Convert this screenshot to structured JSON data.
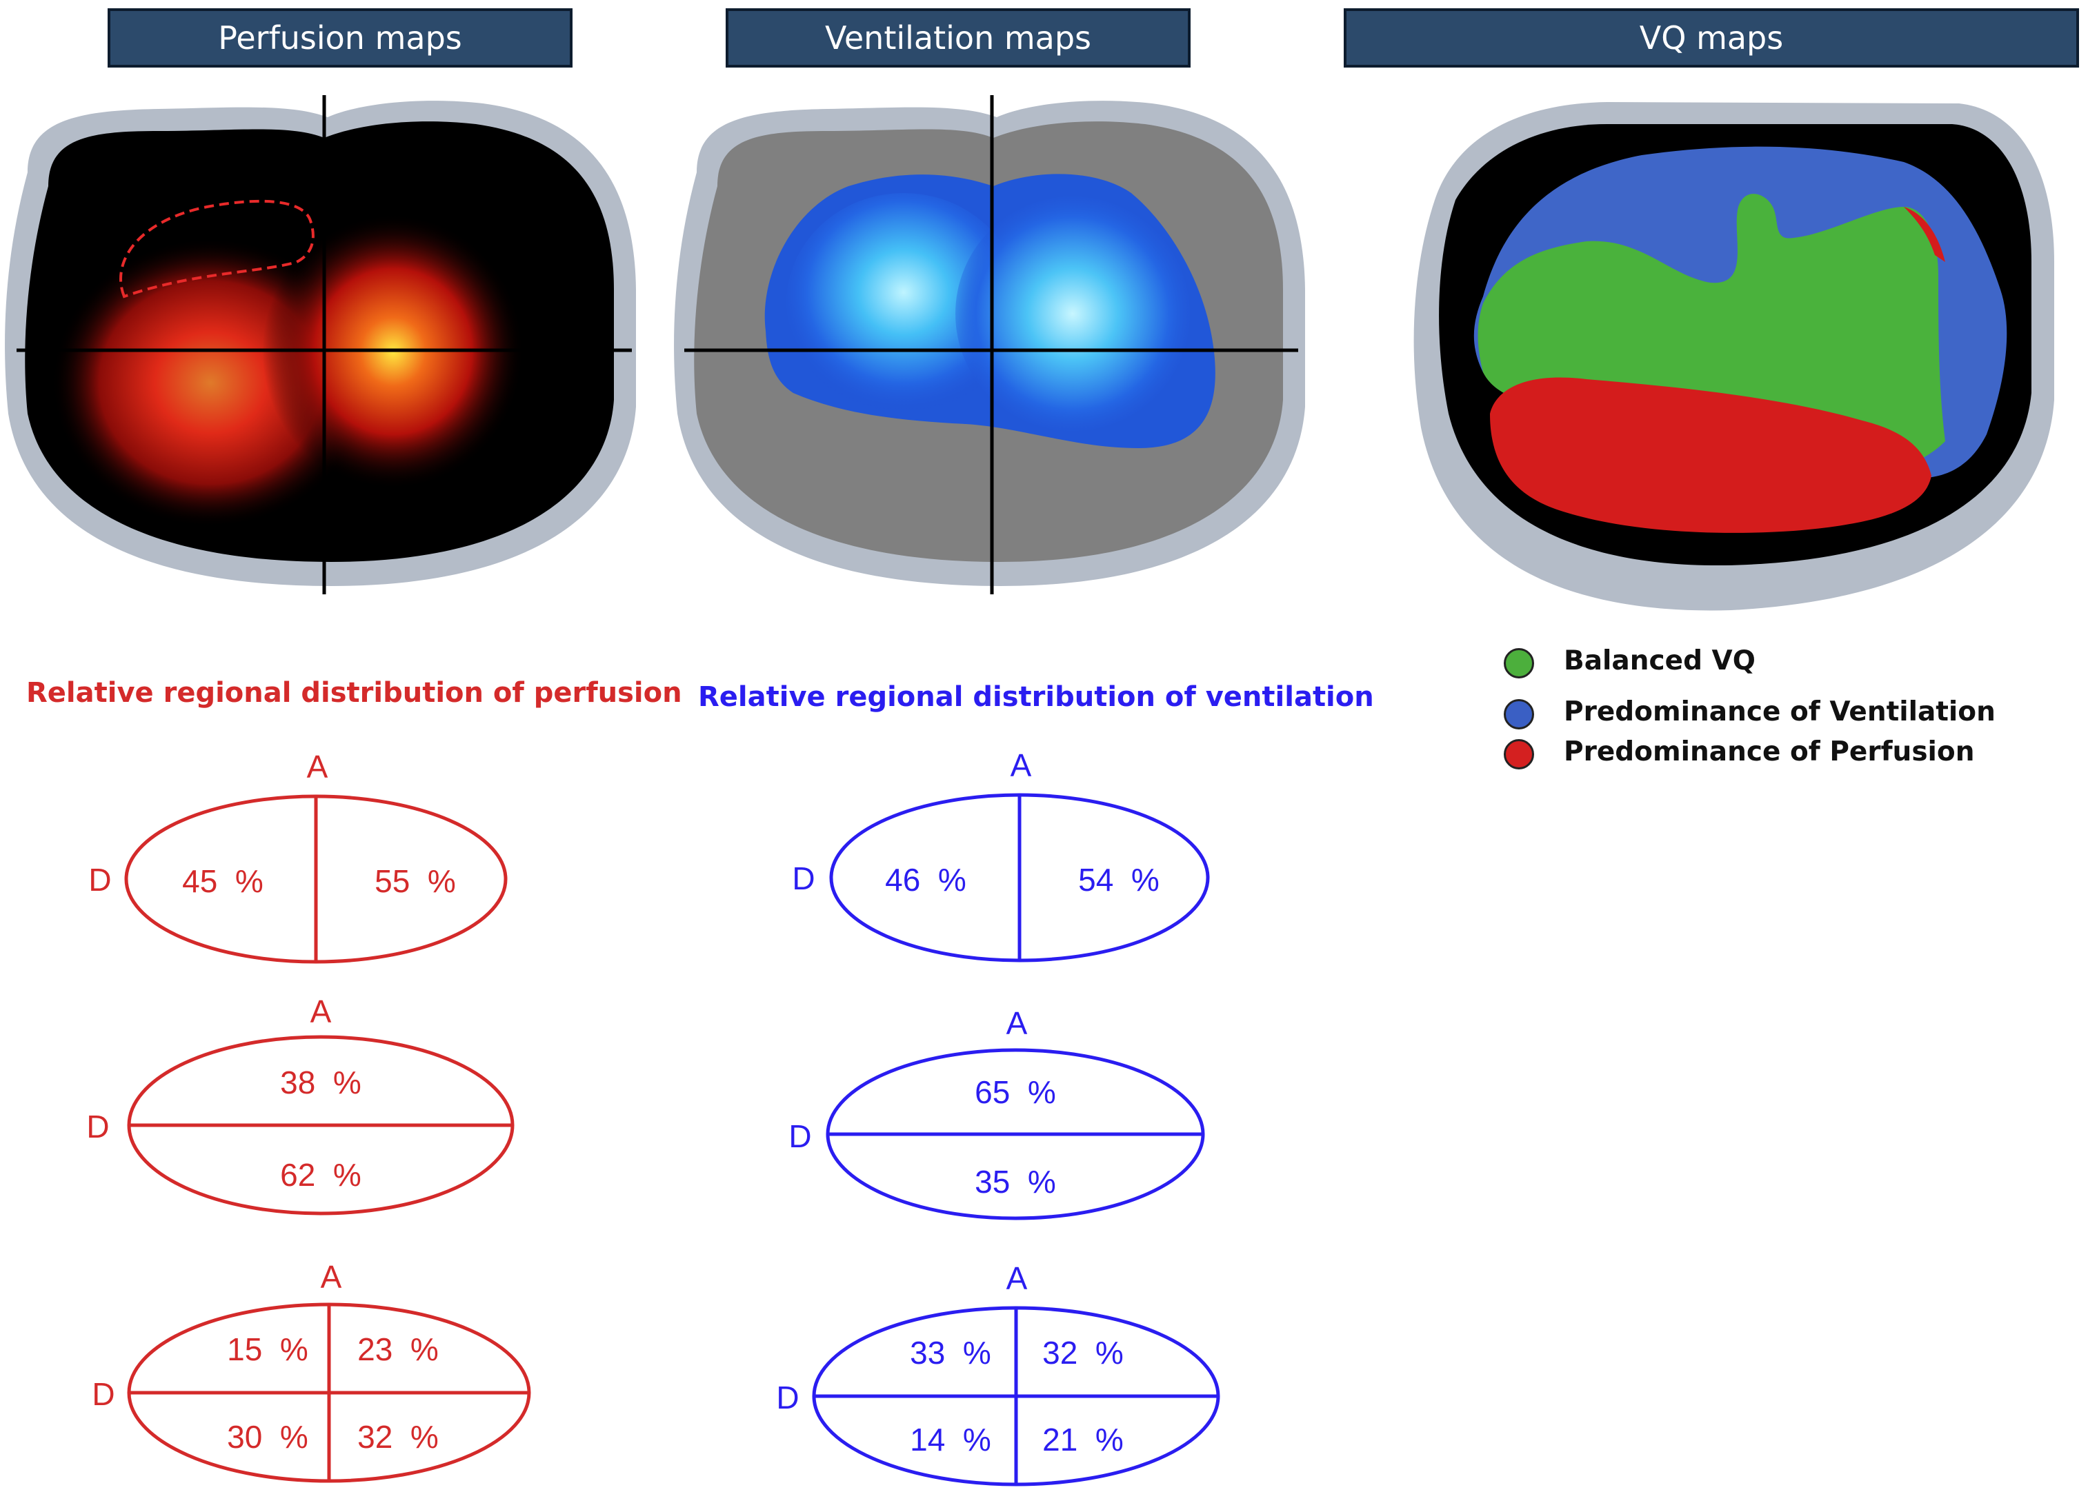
{
  "panels": {
    "perfusion": {
      "title": "Perfusion maps",
      "subtitle": "Relative regional distribution of perfusion",
      "color": "#d42a2a",
      "diagrams": {
        "left_right": {
          "anterior_label": "A",
          "dependent_label": "D",
          "left": "45  %",
          "right": "55  %"
        },
        "top_bottom": {
          "anterior_label": "A",
          "dependent_label": "D",
          "top": "38  %",
          "bottom": "62  %"
        },
        "quadrants": {
          "anterior_label": "A",
          "dependent_label": "D",
          "top_left": "15  %",
          "top_right": "23  %",
          "bottom_left": "30  %",
          "bottom_right": "32  %"
        }
      }
    },
    "ventilation": {
      "title": "Ventilation maps",
      "subtitle": "Relative regional distribution of ventilation",
      "color": "#2a1df0",
      "diagrams": {
        "left_right": {
          "anterior_label": "A",
          "dependent_label": "D",
          "left": "46  %",
          "right": "54  %"
        },
        "top_bottom": {
          "anterior_label": "A",
          "dependent_label": "D",
          "top": "65  %",
          "bottom": "35  %"
        },
        "quadrants": {
          "anterior_label": "A",
          "dependent_label": "D",
          "top_left": "33  %",
          "top_right": "32  %",
          "bottom_left": "14  %",
          "bottom_right": "21  %"
        }
      }
    },
    "vq": {
      "title": "VQ maps",
      "legend": [
        {
          "label": "Balanced VQ",
          "color": "#4caf3c"
        },
        {
          "label": "Predominance of Ventilation",
          "color": "#3a5fc4"
        },
        {
          "label": "Predominance of Perfusion",
          "color": "#d42020"
        }
      ]
    }
  }
}
